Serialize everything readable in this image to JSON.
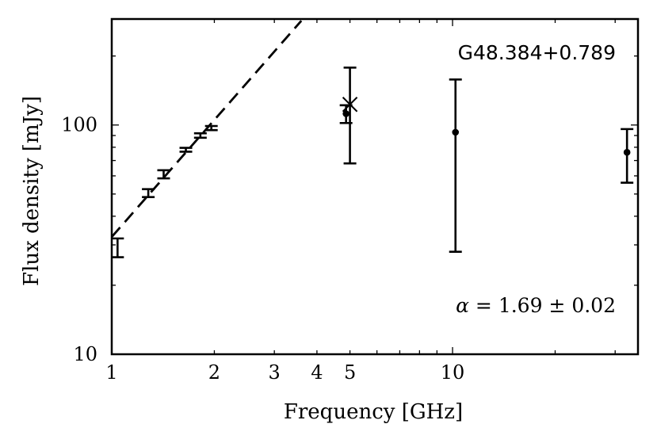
{
  "chart_data": {
    "type": "scatter",
    "title": "",
    "source_label": "G48.384+0.789",
    "xlabel": "Frequency [GHz]",
    "ylabel": "Flux density [mJy]",
    "x_scale": "log",
    "y_scale": "log",
    "xlim": [
      1,
      35
    ],
    "ylim": [
      10,
      290
    ],
    "x_ticks": [
      {
        "value": 1,
        "label": "1"
      },
      {
        "value": 2,
        "label": "2"
      },
      {
        "value": 3,
        "label": "3"
      },
      {
        "value": 4,
        "label": "4"
      },
      {
        "value": 5,
        "label": "5"
      },
      {
        "value": 10,
        "label": "10"
      }
    ],
    "y_ticks": [
      {
        "value": 10,
        "label": "10"
      },
      {
        "value": 100,
        "label": "100"
      }
    ],
    "grid": false,
    "annotation": {
      "symbol": "α",
      "text": " = 1.69 ± 0.02"
    },
    "fit_line": {
      "style": "dashed",
      "alpha": 1.69,
      "x": [
        1.0,
        3.6
      ],
      "y": [
        32.5,
        285
      ]
    },
    "capped_error_bars": [
      {
        "x": 1.04,
        "y_low": 26.5,
        "y_high": 32.0
      },
      {
        "x": 1.28,
        "y_low": 48.5,
        "y_high": 52.5
      },
      {
        "x": 1.42,
        "y_low": 58.5,
        "y_high": 63.5
      },
      {
        "x": 1.65,
        "y_low": 76.5,
        "y_high": 79.5
      },
      {
        "x": 1.82,
        "y_low": 88.0,
        "y_high": 92.0
      },
      {
        "x": 1.96,
        "y_low": 95.0,
        "y_high": 99.0
      }
    ],
    "points": [
      {
        "marker": "dot",
        "x": 4.87,
        "y": 112,
        "y_low": 102,
        "y_high": 122
      },
      {
        "marker": "cross",
        "x": 5.0,
        "y": 123,
        "y_low": 68,
        "y_high": 178
      },
      {
        "marker": "dot",
        "x": 10.2,
        "y": 93,
        "y_low": 28,
        "y_high": 158
      },
      {
        "marker": "dot",
        "x": 32.5,
        "y": 76,
        "y_low": 56,
        "y_high": 96
      }
    ]
  }
}
